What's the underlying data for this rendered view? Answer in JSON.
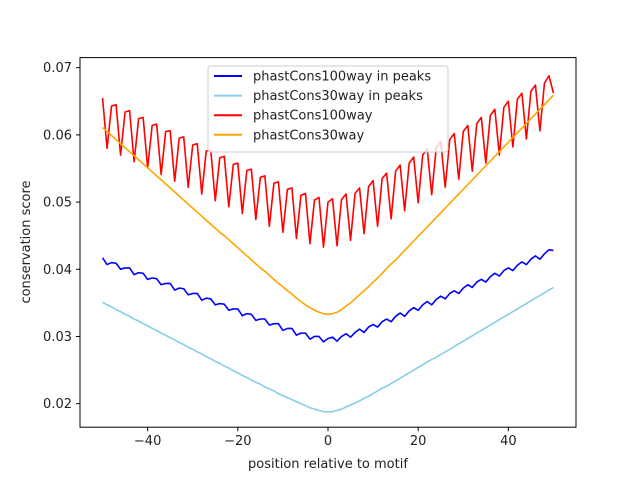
{
  "chart_data": {
    "type": "line",
    "title": "",
    "xlabel": "position relative to motif",
    "ylabel": "conservation score",
    "xlim": [
      -55,
      55
    ],
    "ylim": [
      0.0165,
      0.0715
    ],
    "xticks": [
      -40,
      -20,
      0,
      20,
      40
    ],
    "xtick_labels": [
      "−40",
      "−20",
      "0",
      "20",
      "40"
    ],
    "yticks": [
      0.02,
      0.03,
      0.04,
      0.05,
      0.06,
      0.07
    ],
    "ytick_labels": [
      "0.02",
      "0.03",
      "0.04",
      "0.05",
      "0.06",
      "0.07"
    ],
    "grid": false,
    "legend_position": "top-center",
    "x_start": -50,
    "x_step": 1,
    "series": [
      {
        "name": "phastCons100way in peaks",
        "color": "#0000ff",
        "values": [
          0.0417,
          0.0407,
          0.041,
          0.0409,
          0.04,
          0.0402,
          0.0402,
          0.0392,
          0.0395,
          0.0394,
          0.0385,
          0.0387,
          0.0386,
          0.0377,
          0.0379,
          0.0379,
          0.0369,
          0.0372,
          0.0371,
          0.0362,
          0.0364,
          0.0364,
          0.0354,
          0.0357,
          0.0356,
          0.0347,
          0.0349,
          0.0348,
          0.0339,
          0.0341,
          0.0341,
          0.0331,
          0.0334,
          0.0333,
          0.0324,
          0.0326,
          0.0326,
          0.0317,
          0.0319,
          0.0319,
          0.0309,
          0.0312,
          0.0312,
          0.0302,
          0.0305,
          0.0305,
          0.0296,
          0.03,
          0.03,
          0.0292,
          0.0297,
          0.0299,
          0.0293,
          0.03,
          0.0304,
          0.0299,
          0.0306,
          0.0311,
          0.0306,
          0.0314,
          0.0318,
          0.0314,
          0.0322,
          0.0326,
          0.0322,
          0.033,
          0.0335,
          0.033,
          0.0338,
          0.0343,
          0.0339,
          0.0347,
          0.0352,
          0.0347,
          0.0355,
          0.036,
          0.0356,
          0.0364,
          0.0368,
          0.0364,
          0.0372,
          0.0377,
          0.0373,
          0.0381,
          0.0385,
          0.0381,
          0.0389,
          0.0394,
          0.039,
          0.0398,
          0.0402,
          0.0398,
          0.0406,
          0.0411,
          0.0407,
          0.0415,
          0.042,
          0.0415,
          0.0423,
          0.0429,
          0.0428
        ]
      },
      {
        "name": "phastCons30way in peaks",
        "color": "#87ceeb",
        "values": [
          0.0351,
          0.0347,
          0.0344,
          0.034,
          0.0337,
          0.0333,
          0.033,
          0.0326,
          0.0323,
          0.0319,
          0.0316,
          0.0312,
          0.0309,
          0.0305,
          0.0302,
          0.0298,
          0.0295,
          0.0291,
          0.0288,
          0.0284,
          0.0281,
          0.0277,
          0.0274,
          0.027,
          0.0267,
          0.0263,
          0.026,
          0.0256,
          0.0253,
          0.0249,
          0.0246,
          0.0242,
          0.0239,
          0.0235,
          0.0232,
          0.0229,
          0.0225,
          0.0222,
          0.0219,
          0.0215,
          0.0212,
          0.0209,
          0.0206,
          0.0203,
          0.02,
          0.0197,
          0.0194,
          0.0192,
          0.019,
          0.0188,
          0.0188,
          0.0188,
          0.019,
          0.0192,
          0.0195,
          0.0198,
          0.0201,
          0.0204,
          0.0208,
          0.0211,
          0.0215,
          0.0219,
          0.0223,
          0.0226,
          0.023,
          0.0234,
          0.0238,
          0.0242,
          0.0246,
          0.025,
          0.0254,
          0.0258,
          0.0262,
          0.0266,
          0.0269,
          0.0273,
          0.0277,
          0.0281,
          0.0285,
          0.0289,
          0.0293,
          0.0297,
          0.0301,
          0.0305,
          0.0309,
          0.0313,
          0.0317,
          0.0321,
          0.0325,
          0.0329,
          0.0333,
          0.0337,
          0.0341,
          0.0345,
          0.0349,
          0.0353,
          0.0357,
          0.0361,
          0.0365,
          0.0369,
          0.0373
        ]
      },
      {
        "name": "phastCons100way",
        "color": "#ff0000",
        "values": [
          0.0655,
          0.058,
          0.0643,
          0.0645,
          0.057,
          0.0634,
          0.0636,
          0.056,
          0.0624,
          0.0626,
          0.0551,
          0.0614,
          0.0616,
          0.0541,
          0.0605,
          0.0606,
          0.0531,
          0.0595,
          0.0597,
          0.0522,
          0.0585,
          0.0587,
          0.0512,
          0.0576,
          0.0577,
          0.0502,
          0.0566,
          0.0568,
          0.0493,
          0.0556,
          0.0558,
          0.0483,
          0.0547,
          0.0549,
          0.0474,
          0.0537,
          0.0539,
          0.0464,
          0.0528,
          0.053,
          0.0455,
          0.0519,
          0.0521,
          0.0446,
          0.051,
          0.0513,
          0.0438,
          0.0503,
          0.0507,
          0.0433,
          0.05,
          0.0505,
          0.0435,
          0.0504,
          0.0512,
          0.0443,
          0.0513,
          0.0521,
          0.0453,
          0.0523,
          0.0532,
          0.0464,
          0.0535,
          0.0543,
          0.0475,
          0.0546,
          0.0555,
          0.0487,
          0.0558,
          0.0567,
          0.0499,
          0.057,
          0.0579,
          0.0511,
          0.0581,
          0.059,
          0.0522,
          0.0593,
          0.0602,
          0.0534,
          0.0605,
          0.0614,
          0.0546,
          0.0617,
          0.0626,
          0.0558,
          0.0629,
          0.0638,
          0.057,
          0.0641,
          0.065,
          0.0582,
          0.0653,
          0.0662,
          0.0594,
          0.0665,
          0.0674,
          0.0606,
          0.0677,
          0.0688,
          0.0662
        ]
      },
      {
        "name": "phastCons30way",
        "color": "#ffa500",
        "values": [
          0.0611,
          0.0605,
          0.0599,
          0.0593,
          0.0587,
          0.0581,
          0.0575,
          0.0569,
          0.0563,
          0.0557,
          0.0551,
          0.0545,
          0.0539,
          0.0533,
          0.0527,
          0.0521,
          0.0515,
          0.0509,
          0.0503,
          0.0497,
          0.0491,
          0.0485,
          0.0479,
          0.0473,
          0.0467,
          0.0461,
          0.0455,
          0.045,
          0.0444,
          0.0438,
          0.0432,
          0.0426,
          0.042,
          0.0414,
          0.0408,
          0.0402,
          0.0397,
          0.0391,
          0.0385,
          0.0379,
          0.0374,
          0.0368,
          0.0363,
          0.0357,
          0.0352,
          0.0347,
          0.0343,
          0.0339,
          0.0336,
          0.0334,
          0.0333,
          0.0334,
          0.0336,
          0.034,
          0.0345,
          0.035,
          0.0356,
          0.0362,
          0.0368,
          0.0374,
          0.0381,
          0.0387,
          0.0394,
          0.0401,
          0.0408,
          0.0414,
          0.0421,
          0.0428,
          0.0435,
          0.0442,
          0.0449,
          0.0456,
          0.0463,
          0.047,
          0.0477,
          0.0484,
          0.0491,
          0.0498,
          0.0505,
          0.0512,
          0.0519,
          0.0526,
          0.0533,
          0.054,
          0.0547,
          0.0554,
          0.0561,
          0.0568,
          0.0575,
          0.0582,
          0.0589,
          0.0596,
          0.0603,
          0.061,
          0.0617,
          0.0624,
          0.0631,
          0.0638,
          0.0645,
          0.0652,
          0.0659
        ]
      }
    ]
  }
}
